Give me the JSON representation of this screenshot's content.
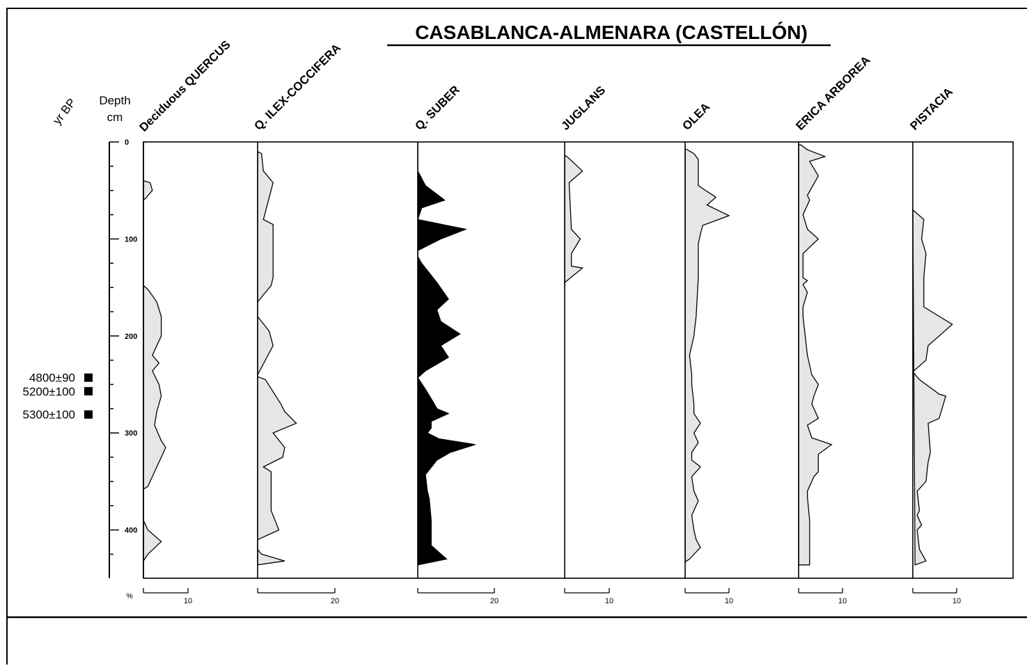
{
  "chart_data": {
    "type": "area",
    "title": "CASABLANCA-ALMENARA (CASTELLÓN)",
    "y_axis": {
      "label_line1": "Depth",
      "label_line2": "cm",
      "range": [
        0,
        450
      ],
      "ticks": [
        0,
        100,
        200,
        300,
        400
      ],
      "tick_labels": [
        "0",
        "100",
        "200",
        "300",
        "400"
      ],
      "minor_step": 25
    },
    "age_axis_label": "yr BP",
    "dates": [
      {
        "label": "4800±90",
        "depth": 243
      },
      {
        "label": "5200±100",
        "depth": 257
      },
      {
        "label": "5300±100",
        "depth": 281
      }
    ],
    "x_unit": "%",
    "series": [
      {
        "name": "Deciduous QUERCUS",
        "fill": "#e6e6e6",
        "scale_max": 10,
        "scale_label": "10",
        "points": [
          [
            40,
            0
          ],
          [
            42,
            1.5
          ],
          [
            50,
            2
          ],
          [
            58,
            0.5
          ],
          [
            60,
            0
          ],
          [
            148,
            0
          ],
          [
            152,
            1
          ],
          [
            165,
            3
          ],
          [
            180,
            4
          ],
          [
            200,
            4
          ],
          [
            220,
            2
          ],
          [
            228,
            3.5
          ],
          [
            236,
            2
          ],
          [
            250,
            3.5
          ],
          [
            262,
            4
          ],
          [
            278,
            3
          ],
          [
            292,
            2.5
          ],
          [
            308,
            4
          ],
          [
            315,
            5
          ],
          [
            340,
            2.5
          ],
          [
            355,
            1
          ],
          [
            358,
            0
          ],
          [
            390,
            0
          ],
          [
            400,
            1
          ],
          [
            412,
            4
          ],
          [
            425,
            1
          ],
          [
            432,
            0
          ]
        ]
      },
      {
        "name": "Q. ILEX-COCCIFERA",
        "fill": "#e6e6e6",
        "scale_max": 20,
        "scale_label": "20",
        "points": [
          [
            10,
            0
          ],
          [
            12,
            1
          ],
          [
            30,
            1.5
          ],
          [
            42,
            4
          ],
          [
            80,
            1.5
          ],
          [
            85,
            4
          ],
          [
            140,
            4
          ],
          [
            148,
            3.5
          ],
          [
            160,
            1
          ],
          [
            165,
            0
          ],
          [
            180,
            0
          ],
          [
            195,
            3
          ],
          [
            210,
            4
          ],
          [
            240,
            0
          ],
          [
            242,
            0
          ],
          [
            245,
            2
          ],
          [
            270,
            6
          ],
          [
            278,
            7
          ],
          [
            290,
            10
          ],
          [
            300,
            4
          ],
          [
            315,
            7
          ],
          [
            325,
            6.5
          ],
          [
            335,
            1.5
          ],
          [
            340,
            3.5
          ],
          [
            380,
            3.5
          ],
          [
            390,
            4.5
          ],
          [
            400,
            5.5
          ],
          [
            410,
            0
          ],
          [
            420,
            0
          ],
          [
            425,
            1
          ],
          [
            432,
            7
          ],
          [
            436,
            0
          ]
        ]
      },
      {
        "name": "Q. SUBER",
        "fill": "#000000",
        "scale_max": 20,
        "scale_label": "20",
        "points": [
          [
            0,
            0
          ],
          [
            30,
            0
          ],
          [
            45,
            2
          ],
          [
            60,
            7
          ],
          [
            68,
            1
          ],
          [
            80,
            0
          ],
          [
            90,
            12.5
          ],
          [
            100,
            6
          ],
          [
            112,
            0
          ],
          [
            118,
            0
          ],
          [
            125,
            1
          ],
          [
            145,
            5
          ],
          [
            162,
            8
          ],
          [
            173,
            5
          ],
          [
            185,
            6
          ],
          [
            198,
            11
          ],
          [
            210,
            6
          ],
          [
            222,
            8
          ],
          [
            236,
            2
          ],
          [
            243,
            0
          ],
          [
            255,
            2
          ],
          [
            268,
            4
          ],
          [
            275,
            5
          ],
          [
            280,
            8
          ],
          [
            288,
            3.5
          ],
          [
            295,
            3.5
          ],
          [
            300,
            2.5
          ],
          [
            306,
            5.5
          ],
          [
            312,
            15
          ],
          [
            320,
            8.5
          ],
          [
            328,
            5
          ],
          [
            333,
            4
          ],
          [
            343,
            2
          ],
          [
            360,
            2.5
          ],
          [
            368,
            3
          ],
          [
            390,
            3.5
          ],
          [
            416,
            3.5
          ],
          [
            430,
            7.5
          ],
          [
            436,
            0
          ]
        ]
      },
      {
        "name": "JUGLANS",
        "fill": "#e6e6e6",
        "scale_max": 10,
        "scale_label": "10",
        "points": [
          [
            14,
            0
          ],
          [
            15,
            0.5
          ],
          [
            30,
            4
          ],
          [
            42,
            1
          ],
          [
            90,
            1.5
          ],
          [
            100,
            3.5
          ],
          [
            115,
            1.5
          ],
          [
            128,
            1.5
          ],
          [
            130,
            4
          ],
          [
            145,
            0
          ],
          [
            150,
            0
          ]
        ]
      },
      {
        "name": "OLEA",
        "fill": "#e6e6e6",
        "scale_max": 10,
        "scale_label": "10",
        "points": [
          [
            7,
            0
          ],
          [
            8,
            0.5
          ],
          [
            12,
            2
          ],
          [
            18,
            3
          ],
          [
            45,
            3
          ],
          [
            57,
            7
          ],
          [
            65,
            5
          ],
          [
            76,
            10
          ],
          [
            86,
            4
          ],
          [
            95,
            3.5
          ],
          [
            105,
            3
          ],
          [
            140,
            3
          ],
          [
            180,
            2.5
          ],
          [
            200,
            2
          ],
          [
            220,
            1
          ],
          [
            240,
            1.5
          ],
          [
            250,
            1.5
          ],
          [
            270,
            2
          ],
          [
            280,
            2
          ],
          [
            290,
            3.5
          ],
          [
            300,
            2
          ],
          [
            310,
            3
          ],
          [
            320,
            1.5
          ],
          [
            328,
            1.5
          ],
          [
            335,
            3.5
          ],
          [
            345,
            1.5
          ],
          [
            360,
            2
          ],
          [
            370,
            3
          ],
          [
            385,
            1.5
          ],
          [
            400,
            2
          ],
          [
            410,
            2.5
          ],
          [
            418,
            3.5
          ],
          [
            430,
            1
          ],
          [
            433,
            0
          ]
        ]
      },
      {
        "name": "ERICA ARBOREA",
        "fill": "#e6e6e6",
        "scale_max": 10,
        "scale_label": "10",
        "points": [
          [
            3,
            0
          ],
          [
            3,
            0.5
          ],
          [
            8,
            2
          ],
          [
            15,
            6
          ],
          [
            20,
            2.5
          ],
          [
            35,
            4.5
          ],
          [
            55,
            2
          ],
          [
            60,
            2.5
          ],
          [
            75,
            1
          ],
          [
            90,
            2
          ],
          [
            100,
            4.5
          ],
          [
            115,
            1
          ],
          [
            130,
            1
          ],
          [
            140,
            1
          ],
          [
            143,
            2
          ],
          [
            147,
            1
          ],
          [
            155,
            2
          ],
          [
            170,
            1
          ],
          [
            180,
            1
          ],
          [
            200,
            1.5
          ],
          [
            220,
            2
          ],
          [
            240,
            3
          ],
          [
            250,
            4.5
          ],
          [
            262,
            3.5
          ],
          [
            270,
            3
          ],
          [
            285,
            4.5
          ],
          [
            292,
            2
          ],
          [
            305,
            3
          ],
          [
            312,
            7.5
          ],
          [
            322,
            4.5
          ],
          [
            340,
            4.5
          ],
          [
            345,
            3.5
          ],
          [
            360,
            2
          ],
          [
            366,
            2
          ],
          [
            390,
            2.5
          ],
          [
            436,
            2.5
          ],
          [
            436,
            0
          ]
        ]
      },
      {
        "name": "PISTACIA",
        "fill": "#e6e6e6",
        "scale_max": 10,
        "scale_label": "10",
        "points": [
          [
            70,
            0
          ],
          [
            72,
            0.5
          ],
          [
            80,
            2.5
          ],
          [
            100,
            2
          ],
          [
            115,
            3
          ],
          [
            140,
            2.5
          ],
          [
            170,
            2.5
          ],
          [
            188,
            9
          ],
          [
            200,
            6
          ],
          [
            210,
            3.5
          ],
          [
            225,
            3
          ],
          [
            237,
            0
          ],
          [
            245,
            1.5
          ],
          [
            260,
            6
          ],
          [
            262,
            7.5
          ],
          [
            285,
            6
          ],
          [
            290,
            3.5
          ],
          [
            320,
            4
          ],
          [
            330,
            3.5
          ],
          [
            350,
            3
          ],
          [
            360,
            1
          ],
          [
            380,
            1.5
          ],
          [
            385,
            1
          ],
          [
            395,
            2
          ],
          [
            400,
            1
          ],
          [
            420,
            1.5
          ],
          [
            432,
            3
          ],
          [
            436,
            0.5
          ]
        ]
      }
    ]
  }
}
